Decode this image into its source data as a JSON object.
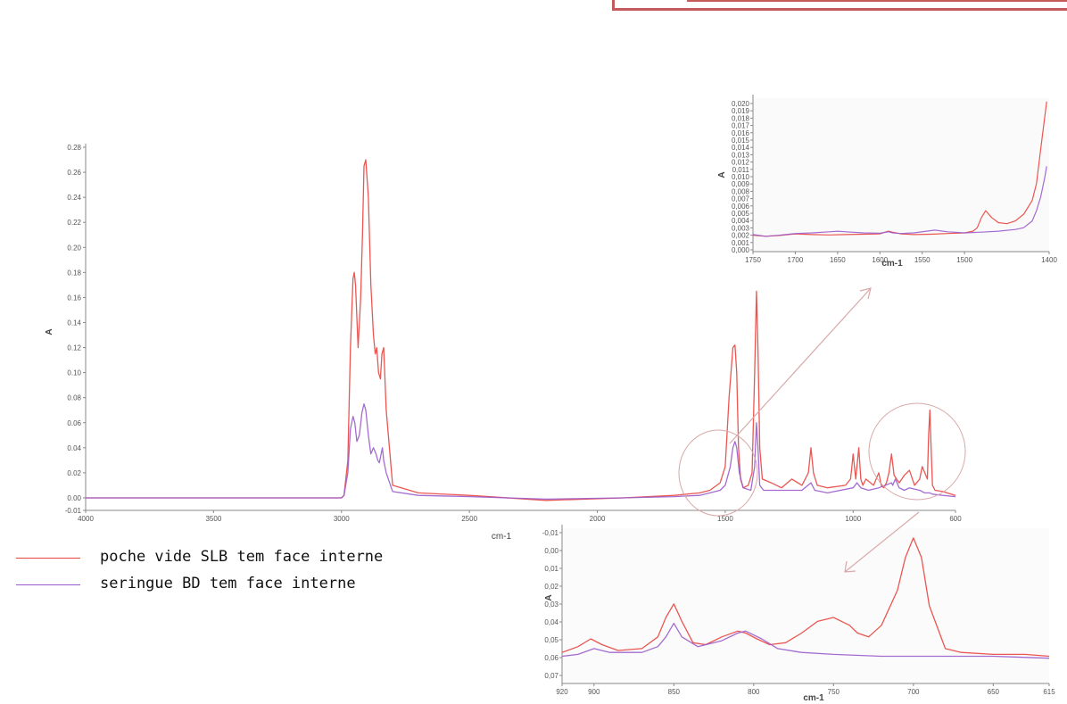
{
  "colors": {
    "series1": "#e8453f",
    "series2": "#9a5ccc",
    "annotation": "#d9a8a8",
    "frame": "#c55a5a"
  },
  "legend": [
    {
      "label": "poche vide SLB tem face interne",
      "color": "#e8453f"
    },
    {
      "label": "seringue BD tem face interne",
      "color": "#9a5ccc"
    }
  ],
  "chart_data": [
    {
      "type": "line",
      "xlabel": "cm-1",
      "ylabel": "A",
      "xlim": [
        4000,
        600
      ],
      "ylim": [
        -0.01,
        0.28
      ],
      "x_ticks": [
        4000,
        3500,
        3000,
        2500,
        2000,
        1500,
        1000,
        600
      ],
      "y_ticks": [
        -0.01,
        0.0,
        0.02,
        0.04,
        0.06,
        0.08,
        0.1,
        0.12,
        0.14,
        0.16,
        0.18,
        0.2,
        0.22,
        0.24,
        0.26,
        0.28
      ],
      "series": [
        {
          "name": "poche vide SLB tem face interne",
          "x": [
            4000,
            3600,
            3200,
            3000,
            2990,
            2975,
            2965,
            2955,
            2950,
            2945,
            2935,
            2925,
            2918,
            2912,
            2905,
            2895,
            2885,
            2875,
            2868,
            2862,
            2855,
            2848,
            2842,
            2835,
            2825,
            2800,
            2700,
            2500,
            2200,
            1900,
            1700,
            1600,
            1560,
            1520,
            1500,
            1485,
            1470,
            1462,
            1455,
            1448,
            1440,
            1430,
            1410,
            1395,
            1385,
            1378,
            1372,
            1365,
            1355,
            1320,
            1280,
            1240,
            1200,
            1175,
            1165,
            1155,
            1140,
            1100,
            1030,
            1010,
            1000,
            990,
            978,
            970,
            962,
            950,
            920,
            900,
            890,
            880,
            870,
            860,
            850,
            840,
            820,
            800,
            780,
            760,
            740,
            730,
            720,
            710,
            705,
            700,
            697,
            690,
            680,
            650,
            600
          ],
          "y": [
            0.0,
            0.0,
            0.0,
            0.0,
            0.002,
            0.03,
            0.12,
            0.175,
            0.18,
            0.17,
            0.12,
            0.16,
            0.21,
            0.265,
            0.27,
            0.24,
            0.17,
            0.13,
            0.115,
            0.12,
            0.1,
            0.095,
            0.115,
            0.12,
            0.07,
            0.01,
            0.004,
            0.002,
            -0.002,
            0.0,
            0.002,
            0.004,
            0.006,
            0.012,
            0.025,
            0.08,
            0.12,
            0.122,
            0.1,
            0.04,
            0.015,
            0.008,
            0.01,
            0.02,
            0.1,
            0.165,
            0.12,
            0.04,
            0.015,
            0.012,
            0.008,
            0.015,
            0.01,
            0.02,
            0.04,
            0.02,
            0.01,
            0.008,
            0.01,
            0.015,
            0.035,
            0.015,
            0.04,
            0.015,
            0.01,
            0.015,
            0.01,
            0.02,
            0.01,
            0.008,
            0.012,
            0.02,
            0.035,
            0.018,
            0.012,
            0.018,
            0.022,
            0.01,
            0.015,
            0.025,
            0.02,
            0.015,
            0.05,
            0.07,
            0.05,
            0.01,
            0.006,
            0.005,
            0.002
          ]
        },
        {
          "name": "seringue BD tem face interne",
          "x": [
            4000,
            3600,
            3200,
            3000,
            2990,
            2975,
            2965,
            2955,
            2948,
            2940,
            2930,
            2920,
            2912,
            2905,
            2895,
            2885,
            2875,
            2865,
            2858,
            2852,
            2845,
            2840,
            2835,
            2825,
            2800,
            2700,
            2500,
            2200,
            1900,
            1700,
            1600,
            1520,
            1500,
            1480,
            1470,
            1462,
            1455,
            1445,
            1430,
            1400,
            1385,
            1378,
            1372,
            1365,
            1350,
            1200,
            1165,
            1150,
            1100,
            1000,
            985,
            970,
            940,
            900,
            850,
            845,
            835,
            820,
            800,
            780,
            740,
            720,
            700,
            690,
            650,
            600
          ],
          "y": [
            0.0,
            0.0,
            0.0,
            0.0,
            0.002,
            0.02,
            0.055,
            0.065,
            0.06,
            0.045,
            0.05,
            0.068,
            0.075,
            0.07,
            0.05,
            0.035,
            0.04,
            0.035,
            0.03,
            0.028,
            0.035,
            0.04,
            0.03,
            0.02,
            0.005,
            0.002,
            0.001,
            -0.001,
            0.0,
            0.001,
            0.002,
            0.006,
            0.01,
            0.025,
            0.04,
            0.045,
            0.04,
            0.02,
            0.008,
            0.006,
            0.025,
            0.06,
            0.04,
            0.01,
            0.006,
            0.006,
            0.012,
            0.006,
            0.004,
            0.008,
            0.012,
            0.008,
            0.006,
            0.008,
            0.012,
            0.01,
            0.015,
            0.008,
            0.006,
            0.008,
            0.006,
            0.004,
            0.004,
            0.003,
            0.002,
            0.001
          ]
        }
      ]
    },
    {
      "type": "line",
      "xlabel": "cm-1",
      "ylabel": "A",
      "xlim": [
        1750,
        1400
      ],
      "x_ticks": [
        1750,
        1700,
        1650,
        1600,
        1550,
        1500,
        1400
      ],
      "y_ticks": [
        "0,020",
        "0,019",
        "0,018",
        "0,017",
        "0,016",
        "0,015",
        "0,014",
        "0,013",
        "0,012",
        "0,011",
        "0,010",
        "0,009",
        "0,008",
        "0,007",
        "0,006",
        "0,005",
        "0,004",
        "0,003",
        "0,002",
        "0,001",
        "0,000"
      ],
      "series": [
        {
          "name": "poche vide SLB tem face interne",
          "x": [
            1750,
            1735,
            1720,
            1700,
            1680,
            1660,
            1640,
            1620,
            1600,
            1590,
            1585,
            1575,
            1560,
            1540,
            1520,
            1500,
            1490,
            1485,
            1480,
            1475,
            1468,
            1460,
            1450,
            1440,
            1430,
            1420,
            1415,
            1410,
            1405,
            1403
          ],
          "y": [
            0.0048,
            0.0045,
            0.0047,
            0.0052,
            0.005,
            0.0049,
            0.005,
            0.0051,
            0.0052,
            0.006,
            0.0057,
            0.0052,
            0.005,
            0.0051,
            0.0053,
            0.0055,
            0.006,
            0.007,
            0.01,
            0.012,
            0.01,
            0.0085,
            0.0082,
            0.009,
            0.011,
            0.015,
            0.02,
            0.03,
            0.04,
            0.044
          ]
        },
        {
          "name": "seringue BD tem face interne",
          "x": [
            1750,
            1735,
            1720,
            1700,
            1680,
            1660,
            1650,
            1640,
            1620,
            1600,
            1590,
            1585,
            1575,
            1560,
            1545,
            1535,
            1520,
            1500,
            1480,
            1460,
            1440,
            1430,
            1420,
            1415,
            1410,
            1405,
            1403
          ],
          "y": [
            0.005,
            0.0045,
            0.0048,
            0.0053,
            0.0055,
            0.0058,
            0.006,
            0.0058,
            0.0055,
            0.0054,
            0.0058,
            0.0055,
            0.0053,
            0.0055,
            0.006,
            0.0063,
            0.0058,
            0.0055,
            0.0057,
            0.006,
            0.0065,
            0.007,
            0.009,
            0.012,
            0.016,
            0.022,
            0.025
          ]
        }
      ]
    },
    {
      "type": "line",
      "xlabel": "cm-1",
      "ylabel": "A",
      "xlim": [
        920,
        615
      ],
      "ylim": [
        -0.01,
        0.07
      ],
      "x_ticks": [
        920,
        900,
        850,
        800,
        750,
        700,
        650,
        615
      ],
      "y_ticks": [
        "-0,01",
        "0,00",
        "0,01",
        "0,02",
        "0,03",
        "0,04",
        "0,05",
        "0,06",
        "0,07"
      ],
      "series": [
        {
          "name": "poche vide SLB tem face interne",
          "x": [
            920,
            910,
            902,
            895,
            885,
            870,
            860,
            855,
            850,
            845,
            838,
            830,
            820,
            810,
            805,
            798,
            790,
            780,
            770,
            760,
            750,
            745,
            740,
            735,
            728,
            720,
            710,
            705,
            700,
            695,
            690,
            680,
            670,
            650,
            630,
            615
          ],
          "y": [
            0.006,
            0.009,
            0.013,
            0.01,
            0.007,
            0.008,
            0.014,
            0.024,
            0.031,
            0.022,
            0.011,
            0.01,
            0.014,
            0.017,
            0.016,
            0.013,
            0.01,
            0.011,
            0.016,
            0.022,
            0.024,
            0.022,
            0.02,
            0.016,
            0.014,
            0.02,
            0.038,
            0.055,
            0.065,
            0.055,
            0.03,
            0.008,
            0.006,
            0.005,
            0.005,
            0.004
          ]
        },
        {
          "name": "seringue BD tem face interne",
          "x": [
            920,
            910,
            900,
            890,
            870,
            860,
            855,
            850,
            845,
            835,
            820,
            810,
            805,
            795,
            785,
            770,
            750,
            720,
            700,
            680,
            650,
            615
          ],
          "y": [
            0.004,
            0.005,
            0.008,
            0.006,
            0.006,
            0.009,
            0.014,
            0.021,
            0.014,
            0.009,
            0.012,
            0.016,
            0.017,
            0.013,
            0.008,
            0.006,
            0.005,
            0.004,
            0.004,
            0.004,
            0.004,
            0.003
          ]
        }
      ]
    }
  ]
}
